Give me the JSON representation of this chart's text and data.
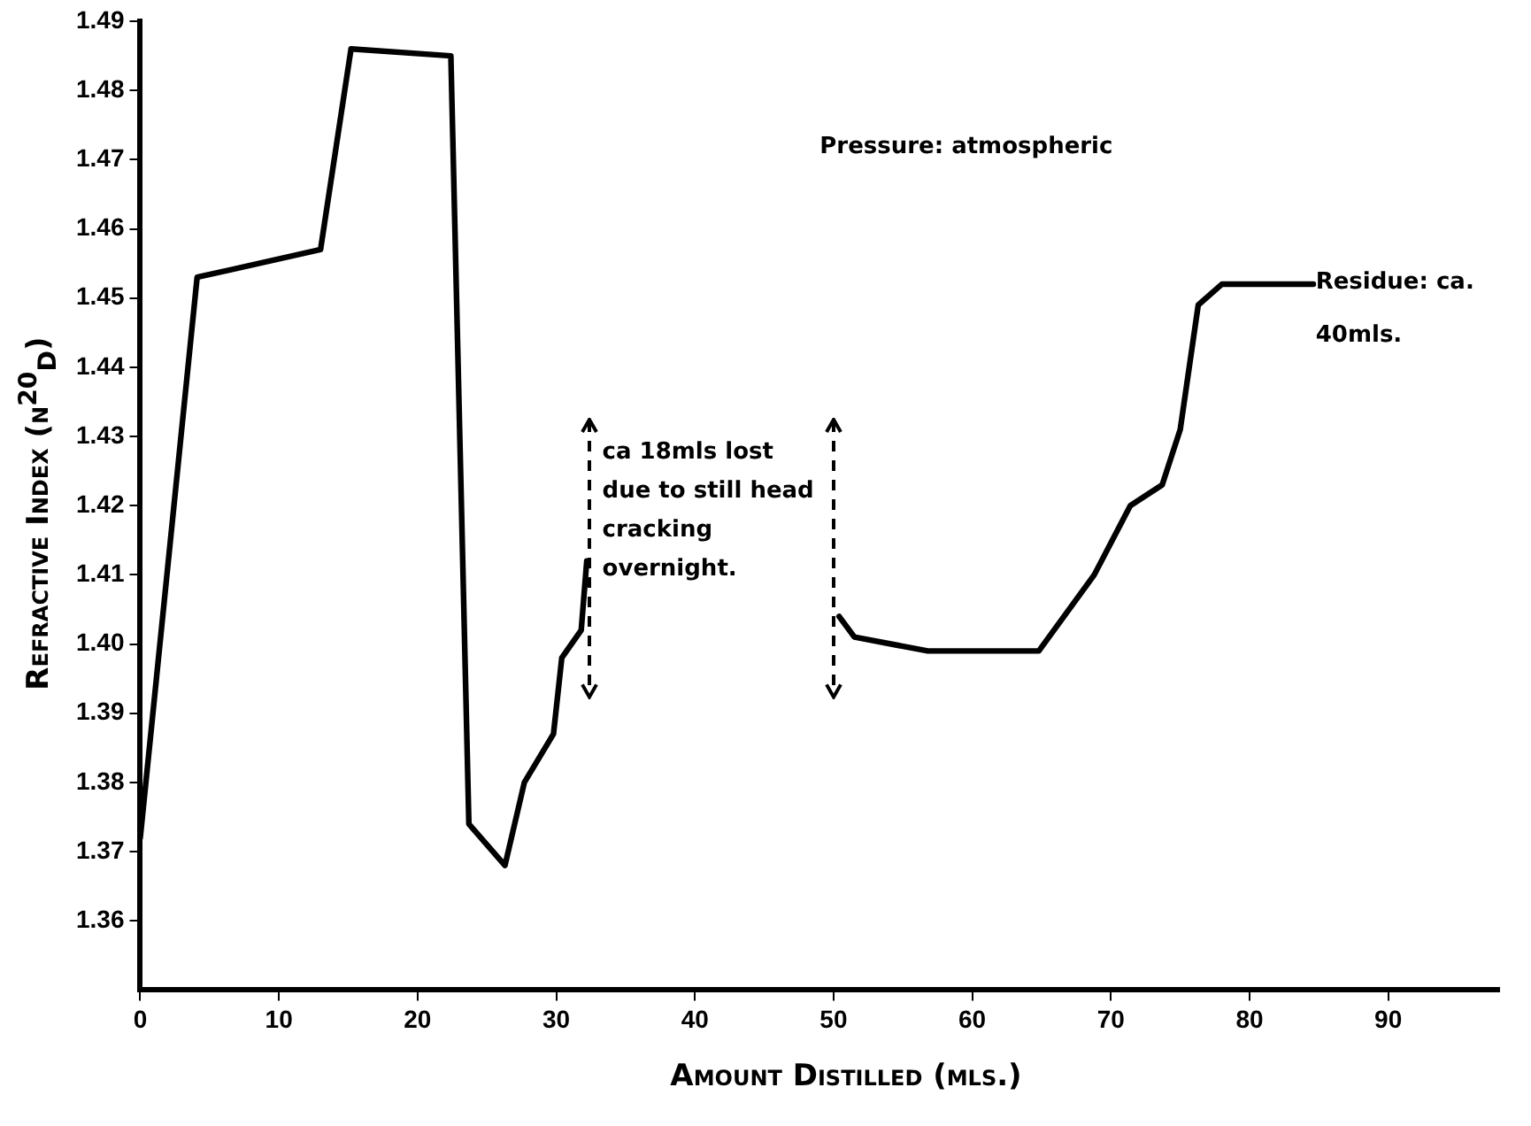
{
  "chart_data": {
    "type": "line",
    "xlabel": "Amount Distilled (mls.)",
    "ylabel": "Refractive Index (n$^{20}$$_{D}$)",
    "x": [
      0,
      4.1,
      13,
      15.2,
      22.4,
      23.7,
      26.3,
      27.7,
      29.8,
      30.4,
      31.8,
      32.2,
      41,
      50.4,
      51.5,
      56.8,
      64.8,
      68.8,
      71.4,
      73.7,
      75,
      76.3,
      78,
      84.6
    ],
    "series": [
      {
        "color": "#000000",
        "values": [
          1.372,
          1.453,
          1.457,
          1.486,
          1.485,
          1.374,
          1.368,
          1.38,
          1.387,
          1.398,
          1.402,
          1.412,
          null,
          1.404,
          1.401,
          1.399,
          1.399,
          1.41,
          1.42,
          1.423,
          1.431,
          1.449,
          1.452,
          1.452
        ]
      }
    ],
    "xlim": [
      0,
      98
    ],
    "xticks": [
      0,
      10,
      20,
      30,
      40,
      50,
      60,
      70,
      80,
      90
    ],
    "ylim": [
      1.35,
      1.49
    ],
    "yticks": [
      1.36,
      1.37,
      1.38,
      1.39,
      {
        "value": 1.4,
        "label": "1.40"
      },
      1.41,
      1.42,
      1.43,
      1.44,
      1.45,
      1.46,
      1.47,
      1.48,
      1.49
    ],
    "annotations": [
      "Pressure: atmospheric",
      "Residue: ca. 40mls.",
      "ca 18mls lost due to still head cracking overnight."
    ],
    "grid": false,
    "legend": false,
    "marker": "none",
    "line_style": "solid"
  }
}
